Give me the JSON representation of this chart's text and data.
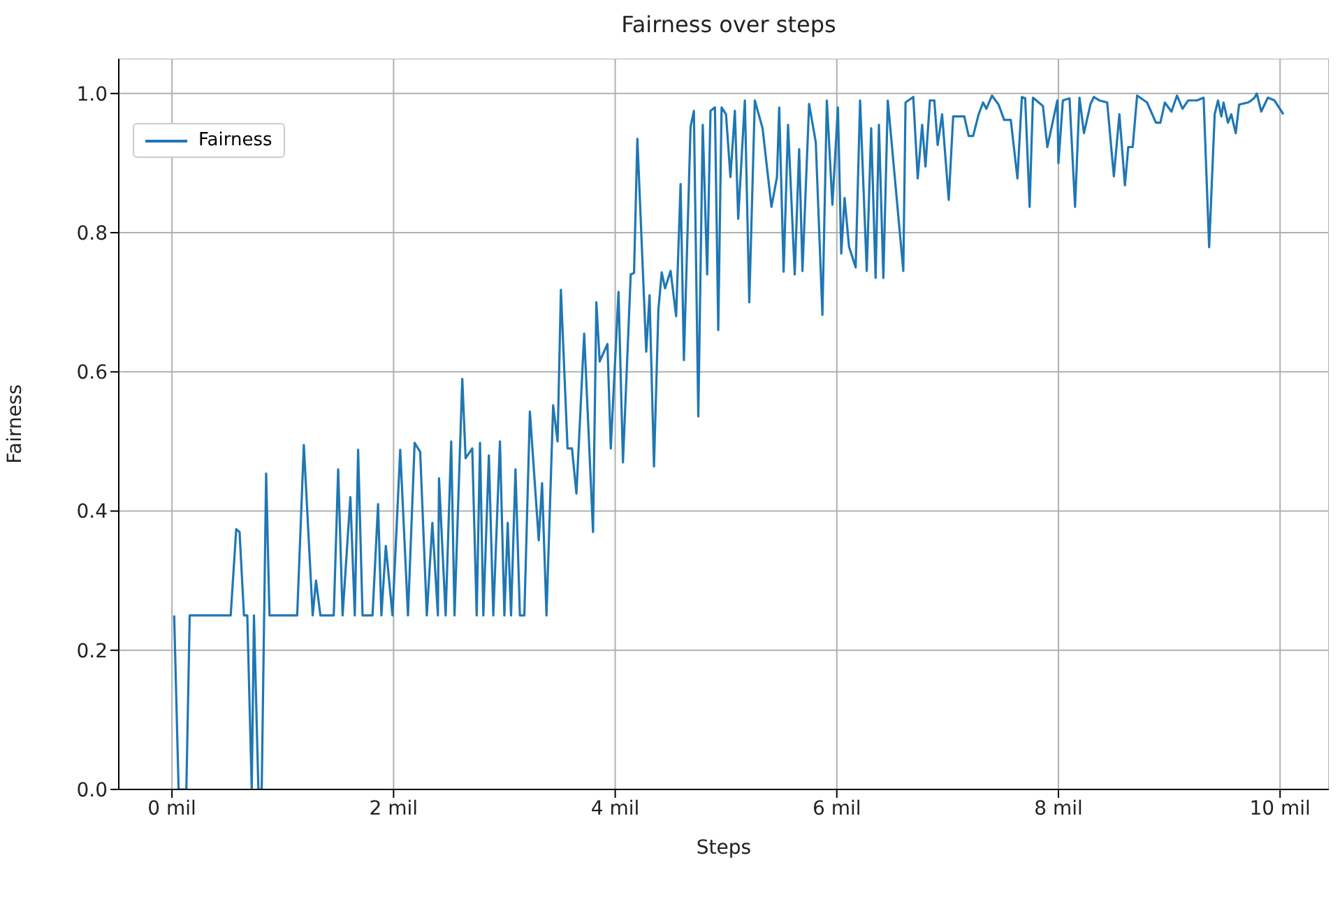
{
  "chart_data": {
    "type": "line",
    "title": "Fairness over steps",
    "xlabel": "Steps",
    "ylabel": "Fairness",
    "xlim": [
      -0.48,
      10.44
    ],
    "ylim": [
      0,
      1.05
    ],
    "xticks": [
      {
        "value": 0,
        "label": "0 mil"
      },
      {
        "value": 2,
        "label": "2 mil"
      },
      {
        "value": 4,
        "label": "4 mil"
      },
      {
        "value": 6,
        "label": "6 mil"
      },
      {
        "value": 8,
        "label": "8 mil"
      },
      {
        "value": 10,
        "label": "10 mil"
      }
    ],
    "yticks": [
      {
        "value": 0,
        "label": "0.0"
      },
      {
        "value": 0.2,
        "label": "0.2"
      },
      {
        "value": 0.4,
        "label": "0.4"
      },
      {
        "value": 0.6,
        "label": "0.6"
      },
      {
        "value": 0.8,
        "label": "0.8"
      },
      {
        "value": 1,
        "label": "1.0"
      }
    ],
    "grid": true,
    "legend": "top left",
    "marker": "none",
    "line_style": "solid",
    "x": [
      0.02,
      0.06,
      0.13,
      0.16,
      0.53,
      0.58,
      0.61,
      0.65,
      0.68,
      0.72,
      0.74,
      0.78,
      0.81,
      0.85,
      0.88,
      1.13,
      1.19,
      1.27,
      1.3,
      1.34,
      1.46,
      1.5,
      1.54,
      1.61,
      1.65,
      1.68,
      1.72,
      1.81,
      1.86,
      1.89,
      1.93,
      1.99,
      2.06,
      2.13,
      2.19,
      2.24,
      2.3,
      2.35,
      2.4,
      2.41,
      2.47,
      2.52,
      2.55,
      2.62,
      2.65,
      2.71,
      2.75,
      2.78,
      2.81,
      2.86,
      2.9,
      2.96,
      3.0,
      3.03,
      3.06,
      3.1,
      3.14,
      3.18,
      3.23,
      3.31,
      3.34,
      3.38,
      3.44,
      3.48,
      3.51,
      3.57,
      3.61,
      3.65,
      3.72,
      3.8,
      3.83,
      3.86,
      3.93,
      3.96,
      4.03,
      4.07,
      4.14,
      4.17,
      4.2,
      4.28,
      4.31,
      4.35,
      4.39,
      4.42,
      4.45,
      4.5,
      4.55,
      4.59,
      4.62,
      4.68,
      4.71,
      4.75,
      4.79,
      4.83,
      4.86,
      4.9,
      4.93,
      4.96,
      5.0,
      5.04,
      5.08,
      5.11,
      5.17,
      5.21,
      5.26,
      5.33,
      5.41,
      5.46,
      5.48,
      5.52,
      5.56,
      5.62,
      5.66,
      5.69,
      5.75,
      5.81,
      5.87,
      5.91,
      5.96,
      6.01,
      6.04,
      6.07,
      6.11,
      6.17,
      6.21,
      6.27,
      6.31,
      6.35,
      6.38,
      6.42,
      6.46,
      6.6,
      6.62,
      6.69,
      6.73,
      6.77,
      6.8,
      6.84,
      6.88,
      6.91,
      6.95,
      7.01,
      7.05,
      7.15,
      7.19,
      7.23,
      7.28,
      7.32,
      7.35,
      7.4,
      7.46,
      7.51,
      7.57,
      7.63,
      7.67,
      7.7,
      7.74,
      7.77,
      7.86,
      7.9,
      7.99,
      8.0,
      8.04,
      8.1,
      8.15,
      8.19,
      8.23,
      8.29,
      8.32,
      8.37,
      8.44,
      8.5,
      8.55,
      8.6,
      8.63,
      8.67,
      8.71,
      8.8,
      8.88,
      8.92,
      8.96,
      9.02,
      9.07,
      9.12,
      9.17,
      9.25,
      9.31,
      9.36,
      9.41,
      9.44,
      9.47,
      9.49,
      9.53,
      9.56,
      9.6,
      9.63,
      9.71,
      9.74,
      9.77,
      9.79,
      9.83,
      9.89,
      9.95,
      10.03
    ],
    "series": [
      {
        "name": "Fairness",
        "color": "#1f77b4",
        "values": [
          0.25,
          0,
          0,
          0.25,
          0.25,
          0.374,
          0.37,
          0.25,
          0.25,
          0,
          0.25,
          0,
          0,
          0.454,
          0.25,
          0.25,
          0.495,
          0.25,
          0.3,
          0.25,
          0.25,
          0.46,
          0.25,
          0.42,
          0.25,
          0.488,
          0.25,
          0.25,
          0.41,
          0.25,
          0.35,
          0.25,
          0.488,
          0.25,
          0.498,
          0.485,
          0.25,
          0.383,
          0.25,
          0.447,
          0.25,
          0.5,
          0.25,
          0.59,
          0.476,
          0.49,
          0.25,
          0.498,
          0.25,
          0.48,
          0.25,
          0.5,
          0.25,
          0.383,
          0.25,
          0.46,
          0.25,
          0.25,
          0.543,
          0.358,
          0.44,
          0.25,
          0.552,
          0.5,
          0.718,
          0.49,
          0.49,
          0.425,
          0.655,
          0.37,
          0.7,
          0.615,
          0.64,
          0.49,
          0.715,
          0.47,
          0.74,
          0.742,
          0.935,
          0.629,
          0.71,
          0.464,
          0.69,
          0.743,
          0.72,
          0.745,
          0.68,
          0.87,
          0.617,
          0.952,
          0.975,
          0.536,
          0.955,
          0.74,
          0.975,
          0.98,
          0.66,
          0.98,
          0.97,
          0.88,
          0.975,
          0.82,
          0.99,
          0.7,
          0.99,
          0.95,
          0.837,
          0.88,
          0.98,
          0.744,
          0.955,
          0.74,
          0.92,
          0.745,
          0.985,
          0.93,
          0.682,
          0.99,
          0.84,
          0.98,
          0.77,
          0.85,
          0.78,
          0.75,
          0.99,
          0.745,
          0.95,
          0.735,
          0.955,
          0.735,
          0.99,
          0.745,
          0.987,
          0.995,
          0.878,
          0.955,
          0.895,
          0.99,
          0.99,
          0.926,
          0.97,
          0.847,
          0.967,
          0.967,
          0.939,
          0.939,
          0.97,
          0.987,
          0.978,
          0.997,
          0.984,
          0.962,
          0.962,
          0.878,
          0.995,
          0.993,
          0.837,
          0.994,
          0.982,
          0.923,
          0.99,
          0.9,
          0.99,
          0.993,
          0.837,
          0.994,
          0.943,
          0.985,
          0.995,
          0.99,
          0.987,
          0.881,
          0.97,
          0.868,
          0.923,
          0.923,
          0.997,
          0.987,
          0.958,
          0.958,
          0.987,
          0.974,
          0.997,
          0.978,
          0.99,
          0.99,
          0.994,
          0.779,
          0.97,
          0.99,
          0.967,
          0.987,
          0.958,
          0.97,
          0.943,
          0.984,
          0.987,
          0.99,
          0.994,
          1.0,
          0.974,
          0.994,
          0.99,
          0.97
        ]
      }
    ]
  }
}
